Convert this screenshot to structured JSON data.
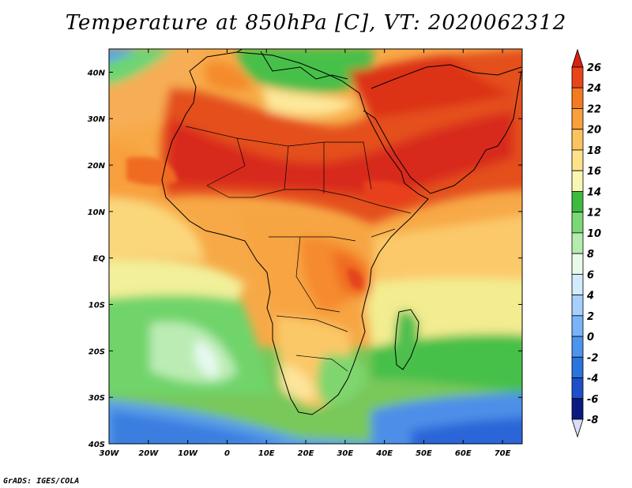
{
  "title": "Temperature at 850hPa [C], VT: 2020062312",
  "credit": "GrADS: IGES/COLA",
  "map": {
    "lon_range": [
      -30,
      75
    ],
    "lat_range": [
      -40,
      45
    ],
    "lon_ticks": [
      {
        "value": -30,
        "label": "30W"
      },
      {
        "value": -20,
        "label": "20W"
      },
      {
        "value": -10,
        "label": "10W"
      },
      {
        "value": 0,
        "label": "0"
      },
      {
        "value": 10,
        "label": "10E"
      },
      {
        "value": 20,
        "label": "20E"
      },
      {
        "value": 30,
        "label": "30E"
      },
      {
        "value": 40,
        "label": "40E"
      },
      {
        "value": 50,
        "label": "50E"
      },
      {
        "value": 60,
        "label": "60E"
      },
      {
        "value": 70,
        "label": "70E"
      }
    ],
    "lat_ticks": [
      {
        "value": 40,
        "label": "40N"
      },
      {
        "value": 30,
        "label": "30N"
      },
      {
        "value": 20,
        "label": "20N"
      },
      {
        "value": 10,
        "label": "10N"
      },
      {
        "value": 0,
        "label": "EQ"
      },
      {
        "value": -10,
        "label": "10S"
      },
      {
        "value": -20,
        "label": "20S"
      },
      {
        "value": -30,
        "label": "30S"
      },
      {
        "value": -40,
        "label": "40S"
      }
    ]
  },
  "colorbar": {
    "levels": [
      "-8",
      "-6",
      "-4",
      "-2",
      "0",
      "2",
      "4",
      "6",
      "8",
      "10",
      "12",
      "14",
      "16",
      "18",
      "20",
      "22",
      "24",
      "26"
    ],
    "colors": [
      "#0b1a80",
      "#1c4fc9",
      "#2a74dd",
      "#4c95ee",
      "#78b4f7",
      "#a6d0fb",
      "#d2ebfd",
      "#e9fae9",
      "#b4ecae",
      "#7bd877",
      "#3fba3f",
      "#f9f6b4",
      "#fde28a",
      "#fbc360",
      "#f8a03c",
      "#f47a22",
      "#e8451a",
      "#d92212"
    ]
  }
}
